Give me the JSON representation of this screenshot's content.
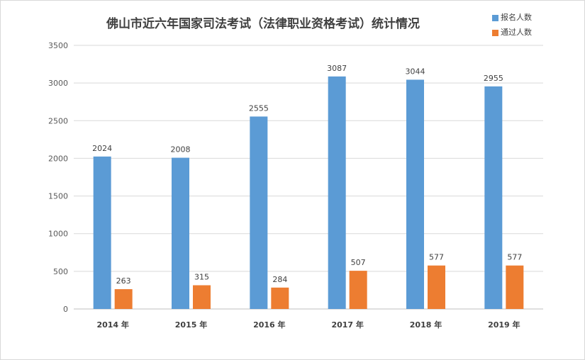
{
  "chart_data": {
    "type": "bar",
    "title": "佛山市近六年国家司法考试（法律职业资格考试）统计情况",
    "categories": [
      "2014 年",
      "2015 年",
      "2016 年",
      "2017  年",
      "2018 年",
      "2019 年"
    ],
    "series": [
      {
        "name": "报名人数",
        "color": "#5b9bd5",
        "values": [
          2024,
          2008,
          2555,
          3087,
          3044,
          2955
        ]
      },
      {
        "name": "通过人数",
        "color": "#ed7d31",
        "values": [
          263,
          315,
          284,
          507,
          577,
          577
        ]
      }
    ],
    "ylim": [
      0,
      3500
    ],
    "yticks": [
      0,
      500,
      1000,
      1500,
      2000,
      2500,
      3000,
      3500
    ],
    "grid": true,
    "legend": "top-right",
    "data_labels": true
  }
}
